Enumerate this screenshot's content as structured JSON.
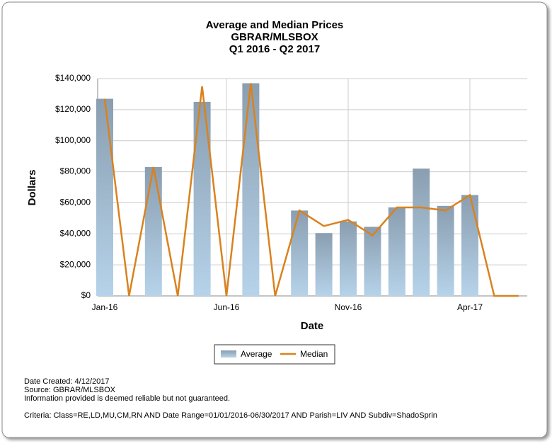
{
  "chart_data": {
    "type": "bar_line",
    "title": [
      "Average and Median Prices",
      "GBRAR/MLSBOX",
      "Q1 2016 - Q2 2017"
    ],
    "x_label": "Date",
    "y_label": "Dollars",
    "categories": [
      "Jan-16",
      null,
      null,
      null,
      null,
      "Jun-16",
      null,
      null,
      null,
      null,
      "Nov-16",
      null,
      null,
      null,
      null,
      "Apr-17",
      null,
      null
    ],
    "series": [
      {
        "name": "Average",
        "kind": "bar",
        "color": "#8fa5b7",
        "values": [
          127000,
          0,
          83000,
          0,
          125000,
          0,
          137000,
          0,
          55000,
          40500,
          48000,
          44500,
          57000,
          82000,
          58000,
          65000,
          0,
          0
        ]
      },
      {
        "name": "Median",
        "kind": "line",
        "color": "#d9821e",
        "values": [
          127000,
          0,
          83000,
          0,
          135000,
          0,
          137000,
          0,
          55000,
          45000,
          49000,
          39000,
          57000,
          57000,
          55000,
          65000,
          0,
          0
        ]
      }
    ],
    "ylim": [
      0,
      140000
    ],
    "yticks": [
      {
        "value": 0,
        "label": "$0"
      },
      {
        "value": 20000,
        "label": "$20,000"
      },
      {
        "value": 40000,
        "label": "$40,000"
      },
      {
        "value": 60000,
        "label": "$60,000"
      },
      {
        "value": 80000,
        "label": "$80,000"
      },
      {
        "value": 100000,
        "label": "$100,000"
      },
      {
        "value": 120000,
        "label": "$120,000"
      },
      {
        "value": 140000,
        "label": "$140,000"
      }
    ],
    "grid": true,
    "legend": "bottom",
    "notes": [
      "Date Created: 4/12/2017",
      "Source: GBRAR/MLSBOX",
      "Information provided is deemed reliable but not guaranteed.",
      "Criteria: Class=RE,LD,MU,CM,RN AND Date Range=01/01/2016-06/30/2017 AND Parish=LIV AND Subdiv=ShadoSprin"
    ]
  }
}
